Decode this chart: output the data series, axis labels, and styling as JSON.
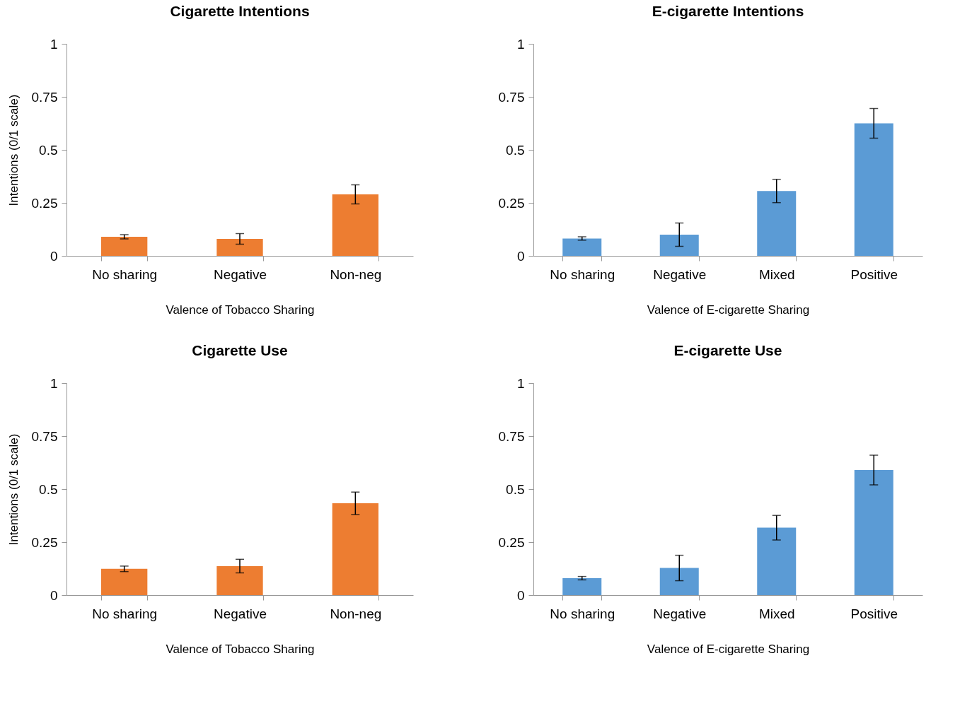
{
  "chart_data": [
    {
      "type": "bar",
      "title": "Cigarette Intentions",
      "xlabel": "Valence of Tobacco Sharing",
      "ylabel": "Intentions  (0/1 scale)",
      "categories": [
        "No sharing",
        "Negative",
        "Non-neg"
      ],
      "values": [
        0.09,
        0.08,
        0.29
      ],
      "errors": [
        0.01,
        0.025,
        0.045
      ],
      "color": "#ed7d31",
      "ylim": [
        0,
        1
      ],
      "yticks": [
        0,
        0.25,
        0.5,
        0.75,
        1
      ],
      "grid": false
    },
    {
      "type": "bar",
      "title": "E-cigarette Intentions",
      "xlabel": "Valence of E-cigarette Sharing",
      "categories": [
        "No sharing",
        "Negative",
        "Mixed",
        "Positive"
      ],
      "values": [
        0.082,
        0.1,
        0.306,
        0.625
      ],
      "errors": [
        0.008,
        0.055,
        0.055,
        0.07
      ],
      "color": "#5b9bd5",
      "ylim": [
        0,
        1
      ],
      "yticks": [
        0,
        0.25,
        0.5,
        0.75,
        1
      ],
      "grid": false
    },
    {
      "type": "bar",
      "title": "Cigarette Use",
      "xlabel": "Valence of Tobacco Sharing",
      "ylabel": "Intentions  (0/1 scale)",
      "categories": [
        "No sharing",
        "Negative",
        "Non-neg"
      ],
      "values": [
        0.124,
        0.137,
        0.433
      ],
      "errors": [
        0.013,
        0.032,
        0.053
      ],
      "color": "#ed7d31",
      "ylim": [
        0,
        1
      ],
      "yticks": [
        0,
        0.25,
        0.5,
        0.75,
        1
      ],
      "grid": false
    },
    {
      "type": "bar",
      "title": "E-cigarette Use",
      "xlabel": "Valence of E-cigarette Sharing",
      "categories": [
        "No sharing",
        "Negative",
        "Mixed",
        "Positive"
      ],
      "values": [
        0.08,
        0.128,
        0.318,
        0.59
      ],
      "errors": [
        0.008,
        0.06,
        0.058,
        0.07
      ],
      "color": "#5b9bd5",
      "ylim": [
        0,
        1
      ],
      "yticks": [
        0,
        0.25,
        0.5,
        0.75,
        1
      ],
      "grid": false
    }
  ]
}
